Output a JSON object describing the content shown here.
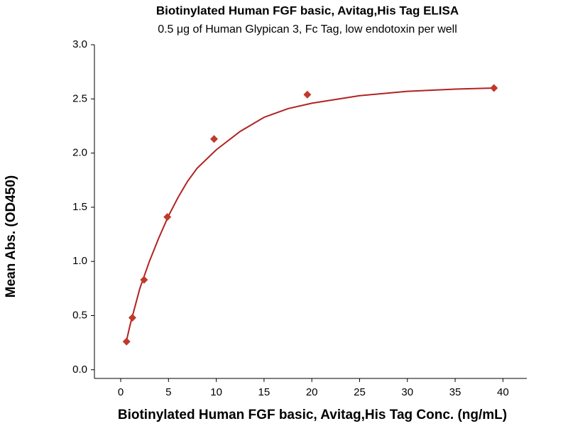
{
  "chart_data": {
    "type": "scatter",
    "title": "Biotinylated Human FGF basic, Avitag,His Tag ELISA",
    "subtitle": "0.5 μg of Human Glypican 3, Fc Tag, low endotoxin per well",
    "x_label": "Biotinylated Human FGF basic, Avitag,His Tag Conc. (ng/mL)",
    "y_label": "Mean Abs. (OD450)",
    "points": {
      "color": "#c0392b",
      "x": [
        0.61,
        1.22,
        2.44,
        4.88,
        9.77,
        19.53,
        39.06
      ],
      "y": [
        0.26,
        0.48,
        0.83,
        1.41,
        2.13,
        2.54,
        2.6
      ]
    },
    "fit": {
      "color": "#b22222",
      "x": [
        0.61,
        1,
        2,
        3,
        4,
        5,
        6,
        7,
        8,
        10,
        12.5,
        15,
        17.5,
        20,
        25,
        30,
        35,
        39.06
      ],
      "y": [
        0.27,
        0.42,
        0.75,
        1.0,
        1.22,
        1.42,
        1.59,
        1.74,
        1.86,
        2.03,
        2.2,
        2.33,
        2.41,
        2.46,
        2.53,
        2.57,
        2.59,
        2.6
      ]
    },
    "xlim": [
      -2.75,
      42.5
    ],
    "ylim": [
      -0.08,
      3.0
    ],
    "xticks": [
      0,
      5,
      10,
      15,
      20,
      25,
      30,
      35,
      40
    ],
    "yticks": [
      {
        "value": 0,
        "label": "0.0"
      },
      0.5,
      {
        "value": 1,
        "label": "1.0"
      },
      1.5,
      {
        "value": 2,
        "label": "2.0"
      },
      2.5,
      {
        "value": 3,
        "label": "3.0"
      }
    ]
  }
}
